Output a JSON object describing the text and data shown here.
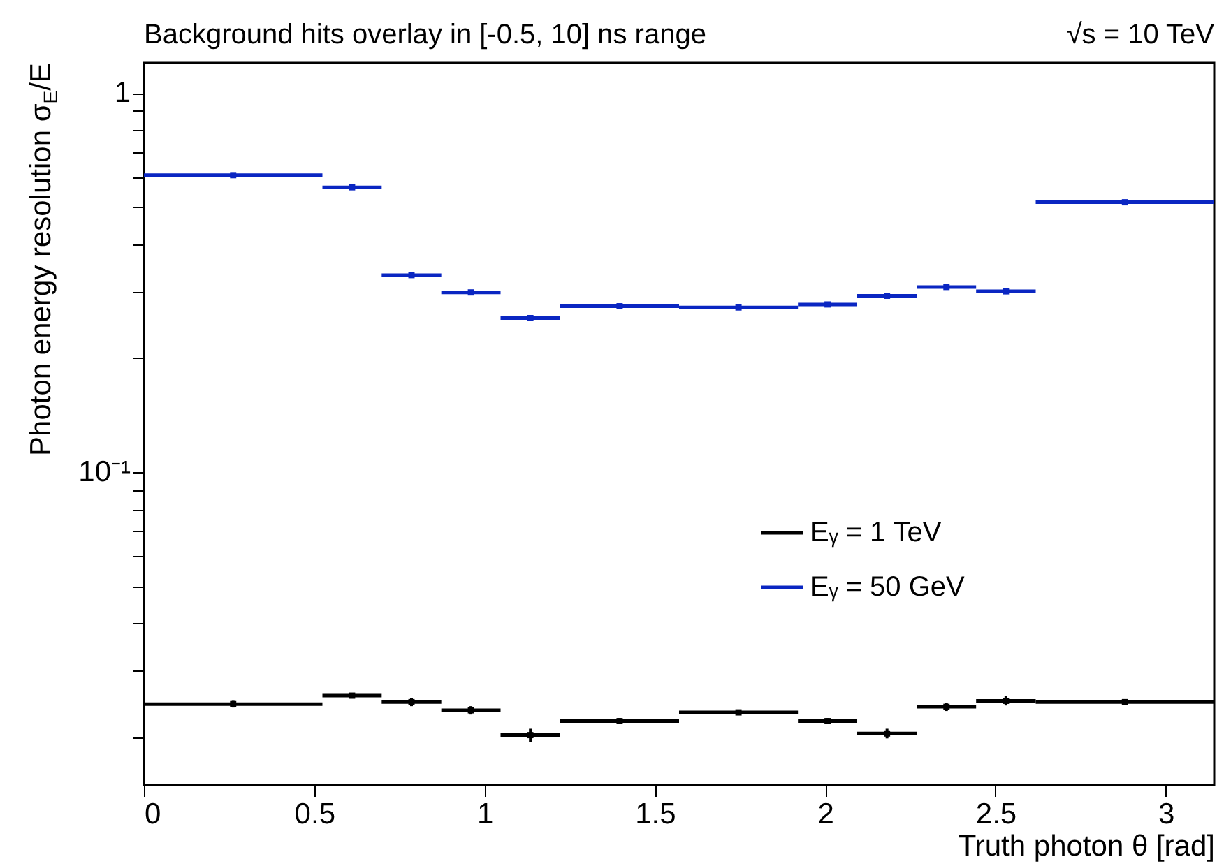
{
  "chart_data": {
    "type": "scatter",
    "title": "Background hits overlay in [-0.5, 10] ns range",
    "annotations": [
      "√s = 10 TeV"
    ],
    "xlabel": "Truth photon θ [rad]",
    "ylabel": "Photon energy resolution σ$_{E}$/E",
    "x": [
      0.262,
      0.611,
      0.7855,
      0.96,
      1.1345,
      1.3965,
      1.7455,
      2.007,
      2.1815,
      2.356,
      2.5305,
      2.88
    ],
    "series": [
      {
        "name": "Eᵧ = 1 TeV",
        "color": "#000000",
        "values": [
          0.0245,
          0.0258,
          0.0248,
          0.0236,
          0.0203,
          0.0221,
          0.0233,
          0.0221,
          0.0205,
          0.0241,
          0.025,
          0.0248
        ],
        "errors": [
          0.0005,
          0.0004,
          0.0006,
          0.0006,
          0.0008,
          0.0004,
          0.0003,
          0.0004,
          0.0006,
          0.0006,
          0.0007,
          0.0004
        ],
        "xerrors": [
          [
            0,
            0.524
          ],
          [
            0.524,
            0.698
          ],
          [
            0.698,
            0.873
          ],
          [
            0.873,
            1.047
          ],
          [
            1.047,
            1.222
          ],
          [
            1.222,
            1.571
          ],
          [
            1.571,
            1.92
          ],
          [
            1.92,
            2.094
          ],
          [
            2.094,
            2.269
          ],
          [
            2.269,
            2.443
          ],
          [
            2.443,
            2.618
          ],
          [
            2.618,
            3.142
          ]
        ]
      },
      {
        "name": "Eᵧ = 50 GeV",
        "color": "#0a26c2",
        "values": [
          0.607,
          0.564,
          0.331,
          0.298,
          0.255,
          0.274,
          0.272,
          0.277,
          0.292,
          0.308,
          0.3,
          0.515
        ],
        "errors": [
          0.01,
          0.005,
          0.004,
          0.004,
          0.004,
          0.002,
          0.002,
          0.002,
          0.004,
          0.004,
          0.005,
          0.003
        ],
        "xerrors": [
          [
            0,
            0.524
          ],
          [
            0.524,
            0.698
          ],
          [
            0.698,
            0.873
          ],
          [
            0.873,
            1.047
          ],
          [
            1.047,
            1.222
          ],
          [
            1.222,
            1.571
          ],
          [
            1.571,
            1.92
          ],
          [
            1.92,
            2.094
          ],
          [
            2.094,
            2.269
          ],
          [
            2.269,
            2.443
          ],
          [
            2.443,
            2.618
          ],
          [
            2.618,
            3.142
          ]
        ]
      }
    ],
    "log": true,
    "legend": "right",
    "marker": "square",
    "xlim": [
      0,
      3.142
    ],
    "ylim": [
      0.015,
      1.2
    ],
    "xticks": [
      0,
      0.5,
      1,
      1.5,
      2,
      2.5,
      3
    ],
    "yticks": [
      {
        "value": 0.02,
        "label": null
      },
      {
        "value": 0.03,
        "label": null
      },
      {
        "value": 0.04,
        "label": null
      },
      {
        "value": 0.05,
        "label": null
      },
      {
        "value": 0.06,
        "label": null
      },
      {
        "value": 0.07,
        "label": null
      },
      {
        "value": 0.08,
        "label": null
      },
      {
        "value": 0.09,
        "label": null
      },
      {
        "value": 0.1,
        "label": "10⁻¹"
      },
      {
        "value": 0.2,
        "label": null
      },
      {
        "value": 0.3,
        "label": null
      },
      {
        "value": 0.4,
        "label": null
      },
      {
        "value": 0.5,
        "label": null
      },
      {
        "value": 0.6,
        "label": null
      },
      {
        "value": 0.7,
        "label": null
      },
      {
        "value": 0.8,
        "label": null
      },
      {
        "value": 0.9,
        "label": null
      },
      1
    ]
  }
}
